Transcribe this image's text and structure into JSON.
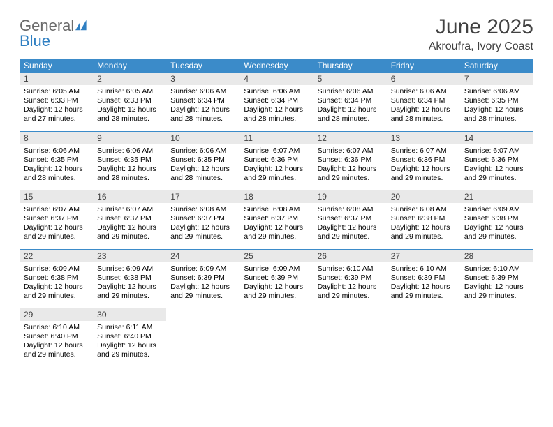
{
  "logo": {
    "general": "General",
    "blue": "Blue"
  },
  "title": "June 2025",
  "location": "Akroufra, Ivory Coast",
  "colors": {
    "header_bg": "#3b8bc9",
    "header_text": "#ffffff",
    "daynum_bg": "#e9e9e9",
    "text_gray": "#414141",
    "logo_gray": "#6b6b6b",
    "logo_blue": "#2f7fc2",
    "rule": "#3b8bc9",
    "page_bg": "#ffffff"
  },
  "typography": {
    "title_fontsize": 30,
    "location_fontsize": 16,
    "dow_fontsize": 12,
    "daynum_fontsize": 12,
    "detail_fontsize": 10.5
  },
  "days_of_week": [
    "Sunday",
    "Monday",
    "Tuesday",
    "Wednesday",
    "Thursday",
    "Friday",
    "Saturday"
  ],
  "weeks": [
    [
      {
        "n": "1",
        "sunrise": "6:05 AM",
        "sunset": "6:33 PM",
        "daylight": "12 hours and 27 minutes."
      },
      {
        "n": "2",
        "sunrise": "6:05 AM",
        "sunset": "6:33 PM",
        "daylight": "12 hours and 28 minutes."
      },
      {
        "n": "3",
        "sunrise": "6:06 AM",
        "sunset": "6:34 PM",
        "daylight": "12 hours and 28 minutes."
      },
      {
        "n": "4",
        "sunrise": "6:06 AM",
        "sunset": "6:34 PM",
        "daylight": "12 hours and 28 minutes."
      },
      {
        "n": "5",
        "sunrise": "6:06 AM",
        "sunset": "6:34 PM",
        "daylight": "12 hours and 28 minutes."
      },
      {
        "n": "6",
        "sunrise": "6:06 AM",
        "sunset": "6:34 PM",
        "daylight": "12 hours and 28 minutes."
      },
      {
        "n": "7",
        "sunrise": "6:06 AM",
        "sunset": "6:35 PM",
        "daylight": "12 hours and 28 minutes."
      }
    ],
    [
      {
        "n": "8",
        "sunrise": "6:06 AM",
        "sunset": "6:35 PM",
        "daylight": "12 hours and 28 minutes."
      },
      {
        "n": "9",
        "sunrise": "6:06 AM",
        "sunset": "6:35 PM",
        "daylight": "12 hours and 28 minutes."
      },
      {
        "n": "10",
        "sunrise": "6:06 AM",
        "sunset": "6:35 PM",
        "daylight": "12 hours and 28 minutes."
      },
      {
        "n": "11",
        "sunrise": "6:07 AM",
        "sunset": "6:36 PM",
        "daylight": "12 hours and 29 minutes."
      },
      {
        "n": "12",
        "sunrise": "6:07 AM",
        "sunset": "6:36 PM",
        "daylight": "12 hours and 29 minutes."
      },
      {
        "n": "13",
        "sunrise": "6:07 AM",
        "sunset": "6:36 PM",
        "daylight": "12 hours and 29 minutes."
      },
      {
        "n": "14",
        "sunrise": "6:07 AM",
        "sunset": "6:36 PM",
        "daylight": "12 hours and 29 minutes."
      }
    ],
    [
      {
        "n": "15",
        "sunrise": "6:07 AM",
        "sunset": "6:37 PM",
        "daylight": "12 hours and 29 minutes."
      },
      {
        "n": "16",
        "sunrise": "6:07 AM",
        "sunset": "6:37 PM",
        "daylight": "12 hours and 29 minutes."
      },
      {
        "n": "17",
        "sunrise": "6:08 AM",
        "sunset": "6:37 PM",
        "daylight": "12 hours and 29 minutes."
      },
      {
        "n": "18",
        "sunrise": "6:08 AM",
        "sunset": "6:37 PM",
        "daylight": "12 hours and 29 minutes."
      },
      {
        "n": "19",
        "sunrise": "6:08 AM",
        "sunset": "6:37 PM",
        "daylight": "12 hours and 29 minutes."
      },
      {
        "n": "20",
        "sunrise": "6:08 AM",
        "sunset": "6:38 PM",
        "daylight": "12 hours and 29 minutes."
      },
      {
        "n": "21",
        "sunrise": "6:09 AM",
        "sunset": "6:38 PM",
        "daylight": "12 hours and 29 minutes."
      }
    ],
    [
      {
        "n": "22",
        "sunrise": "6:09 AM",
        "sunset": "6:38 PM",
        "daylight": "12 hours and 29 minutes."
      },
      {
        "n": "23",
        "sunrise": "6:09 AM",
        "sunset": "6:38 PM",
        "daylight": "12 hours and 29 minutes."
      },
      {
        "n": "24",
        "sunrise": "6:09 AM",
        "sunset": "6:39 PM",
        "daylight": "12 hours and 29 minutes."
      },
      {
        "n": "25",
        "sunrise": "6:09 AM",
        "sunset": "6:39 PM",
        "daylight": "12 hours and 29 minutes."
      },
      {
        "n": "26",
        "sunrise": "6:10 AM",
        "sunset": "6:39 PM",
        "daylight": "12 hours and 29 minutes."
      },
      {
        "n": "27",
        "sunrise": "6:10 AM",
        "sunset": "6:39 PM",
        "daylight": "12 hours and 29 minutes."
      },
      {
        "n": "28",
        "sunrise": "6:10 AM",
        "sunset": "6:39 PM",
        "daylight": "12 hours and 29 minutes."
      }
    ],
    [
      {
        "n": "29",
        "sunrise": "6:10 AM",
        "sunset": "6:40 PM",
        "daylight": "12 hours and 29 minutes."
      },
      {
        "n": "30",
        "sunrise": "6:11 AM",
        "sunset": "6:40 PM",
        "daylight": "12 hours and 29 minutes."
      },
      null,
      null,
      null,
      null,
      null
    ]
  ],
  "labels": {
    "sunrise": "Sunrise: ",
    "sunset": "Sunset: ",
    "daylight": "Daylight: "
  }
}
